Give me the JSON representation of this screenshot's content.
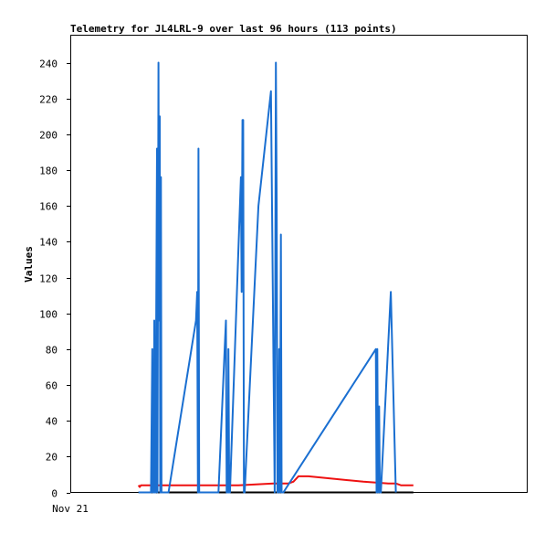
{
  "chart_data": {
    "type": "line",
    "title": "Telemetry for JL4LRL-9 over last 96 hours (113 points)",
    "ylabel": "Values",
    "xlabel": "",
    "ylim": [
      0,
      250
    ],
    "yticks": [
      0,
      20,
      40,
      60,
      80,
      100,
      120,
      140,
      160,
      180,
      200,
      220,
      240
    ],
    "xtick_labels": [
      "Nov 21"
    ],
    "grid": false,
    "colors": {
      "series_1": "#1a6fd1",
      "series_2": "#ee1111",
      "baseline": "#000000",
      "axes": "#000000"
    },
    "series": [
      {
        "x": [
          0,
          0.6,
          1.0,
          2.0,
          4.0,
          5.0,
          5.5,
          5.7,
          5.9,
          6.1,
          6.3,
          6.5,
          6.7,
          6.9,
          7.1,
          7.4,
          7.6,
          8.0,
          8.2,
          8.5,
          8.7,
          9.0,
          9.2,
          9.5,
          9.7,
          10.0,
          10.2,
          10.4,
          10.6,
          10.8,
          11.0,
          11.3,
          12.0,
          23.0,
          23.5,
          23.8,
          24.0,
          24.3,
          32.0,
          34.5,
          35.0,
          35.3,
          35.5,
          35.8,
          36.0,
          36.3,
          36.6,
          41.0,
          41.3,
          41.6,
          41.9,
          42.2,
          42.5,
          48.0,
          53.0,
          54.5,
          55.0,
          55.3,
          55.6,
          55.9,
          56.3,
          56.6,
          57.0,
          57.3,
          57.6,
          58.0,
          95.0,
          95.3,
          95.6,
          95.9,
          96.3,
          96.6,
          97.0,
          101.0,
          103.0
        ],
        "values": [
          0,
          0,
          0,
          0,
          0,
          0,
          80,
          0,
          48,
          0,
          96,
          0,
          48,
          0,
          96,
          192,
          0,
          240,
          96,
          210,
          0,
          176,
          0,
          0,
          0,
          0,
          0,
          0,
          0,
          0,
          0,
          0,
          0,
          96,
          112,
          0,
          192,
          0,
          0,
          80,
          96,
          0,
          24,
          0,
          80,
          0,
          0,
          176,
          112,
          208,
          208,
          0,
          0,
          160,
          224,
          0,
          240,
          160,
          0,
          0,
          80,
          0,
          144,
          0,
          0,
          0,
          80,
          0,
          80,
          0,
          48,
          0,
          0,
          112,
          0
        ]
      },
      {
        "x": [
          0,
          0.5,
          1.0,
          5.5,
          12.0,
          23.0,
          40.0,
          54.0,
          58.0,
          60.0,
          62.0,
          64.0,
          68.0,
          90.0,
          100.0,
          103.0,
          105.0,
          110.0
        ],
        "values": [
          4,
          3,
          4,
          4,
          4,
          4,
          4,
          5,
          5,
          5,
          6,
          9,
          9,
          6,
          5,
          5,
          4,
          4
        ]
      }
    ],
    "baseline": {
      "x": [
        0,
        110
      ],
      "values": [
        0,
        0
      ]
    }
  }
}
